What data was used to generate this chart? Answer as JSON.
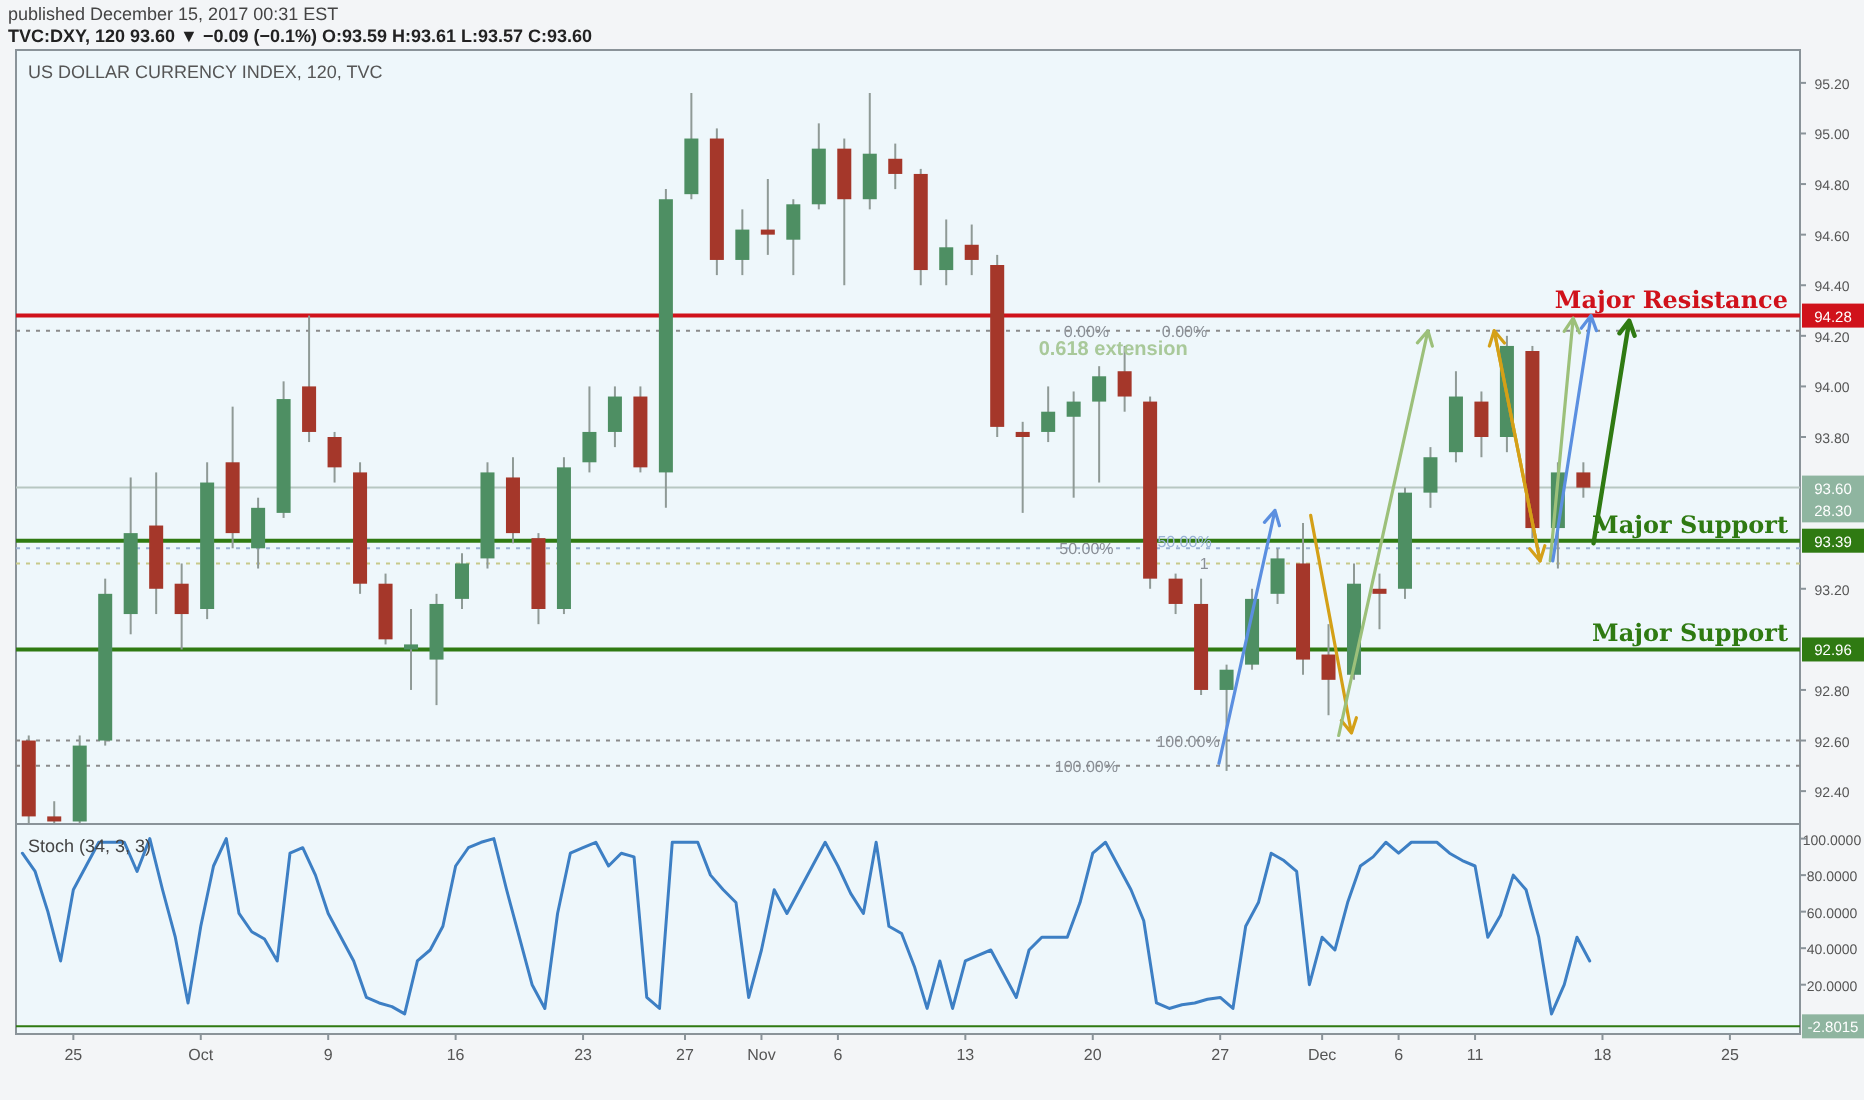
{
  "chart_data": [
    {
      "type": "candlestick",
      "title": "TVC:DXY, 120  93.60 ▼ −0.09 (−0.1%) O:93.59 H:93.61 L:93.57 C:93.60",
      "subtitle": "US DOLLAR CURRENCY INDEX, 120, TVC",
      "annotations": [
        "published December 15, 2017 00:31 EST",
        {
          "text": "0.00%",
          "y": 94.22
        },
        {
          "text": "0.618 extension",
          "y": 94.22
        },
        {
          "text": "50.00%",
          "y": 93.36
        },
        {
          "text": "100.00%",
          "y": 92.5
        },
        {
          "text": "100.00%",
          "y": 92.6
        },
        {
          "text": "1",
          "y": 93.3
        },
        {
          "text": "0.00%",
          "y": 94.22
        },
        {
          "text": "50.00%",
          "y": 93.39
        },
        {
          "text": "94.28",
          "y": 94.28
        },
        {
          "text": "93.60",
          "y": 93.6
        },
        {
          "text": "28.30",
          "y": 93.51
        },
        {
          "text": "93.39",
          "y": 93.39
        },
        {
          "text": "92.96",
          "y": 92.96
        }
      ],
      "categories": [
        null,
        null,
        null,
        null,
        null,
        null,
        null,
        null,
        null,
        null,
        null,
        null,
        null,
        null,
        null,
        null,
        null,
        null,
        null,
        null,
        null,
        null,
        null,
        null,
        null,
        null,
        null,
        null,
        null,
        null,
        null,
        null,
        null,
        null,
        null,
        null,
        null,
        null,
        null,
        null,
        null,
        null,
        null,
        null,
        null,
        null,
        null,
        null,
        null,
        null,
        null,
        null,
        null,
        null,
        null,
        null,
        null,
        null,
        null,
        null,
        null,
        null,
        null,
        null,
        null,
        null,
        null,
        null,
        null,
        null
      ],
      "ohlc": [
        [
          92.6,
          92.62,
          92.26,
          92.3
        ],
        [
          92.3,
          92.36,
          92.24,
          92.28
        ],
        [
          92.28,
          92.62,
          92.24,
          92.58
        ],
        [
          92.6,
          93.24,
          92.58,
          93.18
        ],
        [
          93.1,
          93.64,
          93.02,
          93.42
        ],
        [
          93.45,
          93.66,
          93.1,
          93.2
        ],
        [
          93.22,
          93.3,
          92.96,
          93.1
        ],
        [
          93.12,
          93.7,
          93.08,
          93.62
        ],
        [
          93.7,
          93.92,
          93.36,
          93.42
        ],
        [
          93.36,
          93.56,
          93.28,
          93.52
        ],
        [
          93.5,
          94.02,
          93.48,
          93.95
        ],
        [
          94.0,
          94.28,
          93.78,
          93.82
        ],
        [
          93.8,
          93.82,
          93.62,
          93.68
        ],
        [
          93.66,
          93.7,
          93.18,
          93.22
        ],
        [
          93.22,
          93.26,
          92.98,
          93.0
        ],
        [
          92.96,
          93.12,
          92.8,
          92.98
        ],
        [
          92.92,
          93.18,
          92.74,
          93.14
        ],
        [
          93.16,
          93.34,
          93.12,
          93.3
        ],
        [
          93.32,
          93.7,
          93.28,
          93.66
        ],
        [
          93.64,
          93.72,
          93.38,
          93.42
        ],
        [
          93.4,
          93.42,
          93.06,
          93.12
        ],
        [
          93.12,
          93.72,
          93.1,
          93.68
        ],
        [
          93.7,
          94.0,
          93.66,
          93.82
        ],
        [
          93.82,
          94.0,
          93.76,
          93.96
        ],
        [
          93.96,
          94.0,
          93.66,
          93.68
        ],
        [
          93.66,
          94.78,
          93.52,
          94.74
        ],
        [
          94.76,
          95.16,
          94.74,
          94.98
        ],
        [
          94.98,
          95.02,
          94.44,
          94.5
        ],
        [
          94.5,
          94.7,
          94.44,
          94.62
        ],
        [
          94.62,
          94.82,
          94.52,
          94.6
        ],
        [
          94.58,
          94.74,
          94.44,
          94.72
        ],
        [
          94.72,
          95.04,
          94.7,
          94.94
        ],
        [
          94.94,
          94.98,
          94.4,
          94.74
        ],
        [
          94.74,
          95.16,
          94.7,
          94.92
        ],
        [
          94.9,
          94.96,
          94.78,
          94.84
        ],
        [
          94.84,
          94.86,
          94.4,
          94.46
        ],
        [
          94.46,
          94.66,
          94.4,
          94.55
        ],
        [
          94.56,
          94.64,
          94.44,
          94.5
        ],
        [
          94.48,
          94.52,
          93.8,
          93.84
        ],
        [
          93.82,
          93.86,
          93.5,
          93.8
        ],
        [
          93.82,
          94.0,
          93.78,
          93.9
        ],
        [
          93.88,
          93.98,
          93.56,
          93.94
        ],
        [
          93.94,
          94.08,
          93.62,
          94.04
        ],
        [
          94.06,
          94.16,
          93.9,
          93.96
        ],
        [
          93.94,
          93.96,
          93.2,
          93.24
        ],
        [
          93.24,
          93.26,
          93.1,
          93.14
        ],
        [
          93.14,
          93.24,
          92.78,
          92.8
        ],
        [
          92.8,
          92.9,
          92.48,
          92.88
        ],
        [
          92.9,
          93.2,
          92.88,
          93.16
        ],
        [
          93.18,
          93.36,
          93.14,
          93.32
        ],
        [
          93.3,
          93.46,
          92.86,
          92.92
        ],
        [
          92.94,
          93.06,
          92.7,
          92.84
        ],
        [
          92.86,
          93.3,
          92.84,
          93.22
        ],
        [
          93.2,
          93.26,
          93.04,
          93.18
        ],
        [
          93.2,
          93.6,
          93.16,
          93.58
        ],
        [
          93.58,
          93.76,
          93.52,
          93.72
        ],
        [
          93.74,
          94.06,
          93.7,
          93.96
        ],
        [
          93.94,
          93.98,
          93.72,
          93.8
        ],
        [
          93.8,
          94.2,
          93.74,
          94.16
        ],
        [
          94.14,
          94.16,
          93.4,
          93.44
        ],
        [
          93.44,
          93.7,
          93.28,
          93.66
        ],
        [
          93.66,
          93.7,
          93.56,
          93.6
        ],
        null,
        null,
        null,
        null,
        null,
        null,
        null,
        null
      ],
      "ylim": [
        92.27,
        95.33
      ],
      "yticks": [
        {
          "value": 92.4,
          "label": "92.40"
        },
        {
          "value": 92.6,
          "label": "92.60"
        },
        {
          "value": 92.8,
          "label": "92.80"
        },
        {
          "value": 93.2,
          "label": "93.20"
        },
        {
          "value": 93.8,
          "label": "93.80"
        },
        {
          "value": 94.0,
          "label": "94.00"
        },
        {
          "value": 94.2,
          "label": "94.20"
        },
        {
          "value": 94.4,
          "label": "94.40"
        },
        {
          "value": 94.6,
          "label": "94.60"
        },
        {
          "value": 94.8,
          "label": "94.80"
        },
        {
          "value": 95.0,
          "label": "95.00"
        },
        {
          "value": 95.2,
          "label": "95.20"
        }
      ],
      "tick_labels": "y",
      "ref_lines": [
        {
          "axis": "y",
          "value": 94.28,
          "label": "Major Resistance",
          "color": "#d0121b",
          "line_style": "solid"
        },
        {
          "axis": "y",
          "value": 93.39,
          "label": "Major Support",
          "color": "#2f7a12",
          "line_style": "solid"
        },
        {
          "axis": "y",
          "value": 92.96,
          "label": "Major Support",
          "color": "#2f7a12",
          "line_style": "solid"
        },
        {
          "axis": "y",
          "value": 93.6,
          "label": null,
          "color": "#b7c7c2",
          "line_style": "solid"
        },
        {
          "axis": "y",
          "value": 94.22,
          "label": null,
          "color": "#8a8a8a",
          "line_style": "dotted"
        },
        {
          "axis": "y",
          "value": 93.36,
          "label": null,
          "color": "#9ab3d6",
          "line_style": "dotted"
        },
        {
          "axis": "y",
          "value": 93.3,
          "label": null,
          "color": "#c7c98a",
          "line_style": "dotted"
        },
        {
          "axis": "y",
          "value": 92.6,
          "label": null,
          "color": "#8a8a8a",
          "line_style": "dotted"
        },
        {
          "axis": "y",
          "value": 92.5,
          "label": null,
          "color": "#8a8a8a",
          "line_style": "dotted"
        }
      ]
    },
    {
      "type": "line",
      "title": "Stoch (34, 3, 3)",
      "categories": [
        null,
        null,
        null,
        null,
        "25",
        null,
        null,
        null,
        null,
        null,
        null,
        null,
        null,
        null,
        "Oct",
        null,
        null,
        null,
        null,
        null,
        null,
        null,
        null,
        null,
        "9",
        null,
        null,
        null,
        null,
        null,
        null,
        null,
        null,
        null,
        "16",
        null,
        null,
        null,
        null,
        null,
        null,
        null,
        null,
        null,
        "23",
        null,
        null,
        null,
        null,
        null,
        null,
        null,
        "27",
        null,
        null,
        null,
        null,
        null,
        "Nov",
        null,
        null,
        null,
        null,
        null,
        "6",
        null,
        null,
        null,
        null,
        null,
        null,
        null,
        null,
        null,
        "13",
        null,
        null,
        null,
        null,
        null,
        null,
        null,
        null,
        null,
        "20",
        null,
        null,
        null,
        null,
        null,
        null,
        null,
        null,
        null,
        "27",
        null,
        null,
        null,
        null,
        null,
        null,
        null,
        "Dec",
        null,
        null,
        null,
        null,
        null,
        "6",
        null,
        null,
        null,
        null,
        null,
        "11",
        null,
        null,
        null,
        null,
        null,
        null,
        null,
        null,
        null,
        "18",
        null,
        null,
        null,
        null,
        null,
        null,
        null,
        null,
        null,
        "25",
        null,
        null,
        null,
        null,
        null
      ],
      "series": [
        {
          "color": "#3d7fc4",
          "values": [
            92,
            82,
            60,
            33,
            72,
            85,
            98,
            98,
            98,
            82,
            100,
            72,
            46,
            10,
            52,
            85,
            100,
            59,
            49,
            45,
            33,
            92,
            95,
            80,
            59,
            46,
            33,
            13,
            10,
            8,
            4,
            33,
            39,
            52,
            85,
            95,
            98,
            100,
            72,
            46,
            20,
            7,
            59,
            92,
            95,
            98,
            85,
            92,
            90,
            13,
            7,
            98,
            98,
            98,
            80,
            72,
            65,
            13,
            39,
            72,
            59,
            72,
            85,
            98,
            85,
            70,
            59,
            98,
            52,
            48,
            30,
            7,
            33,
            7,
            33,
            36,
            39,
            26,
            13,
            39,
            46,
            46,
            46,
            65,
            92,
            98,
            85,
            72,
            55,
            10,
            7,
            9,
            10,
            12,
            13,
            7,
            52,
            65,
            92,
            88,
            82,
            20,
            46,
            39,
            65,
            85,
            90,
            98,
            92,
            98,
            98,
            98,
            92,
            88,
            85,
            46,
            58,
            80,
            72,
            46,
            4,
            20,
            46,
            33,
            null,
            null,
            null,
            null,
            null,
            null,
            null,
            null,
            null,
            null,
            null,
            null,
            null,
            null,
            null,
            null
          ]
        }
      ],
      "ylim": [
        -7,
        108
      ],
      "yticks": [
        {
          "value": 20,
          "label": "20.0000"
        },
        {
          "value": 40,
          "label": "40.0000"
        },
        {
          "value": 60,
          "label": "60.0000"
        },
        {
          "value": 80,
          "label": "80.0000"
        },
        {
          "value": 100,
          "label": "100.0000"
        }
      ],
      "annotations": [
        {
          "text": "-2.8015",
          "y": -2.8015
        }
      ],
      "ref_lines": [
        {
          "axis": "y",
          "value": -2.8015,
          "label": null,
          "color": "#2f7a12",
          "line_style": "solid"
        }
      ]
    }
  ]
}
